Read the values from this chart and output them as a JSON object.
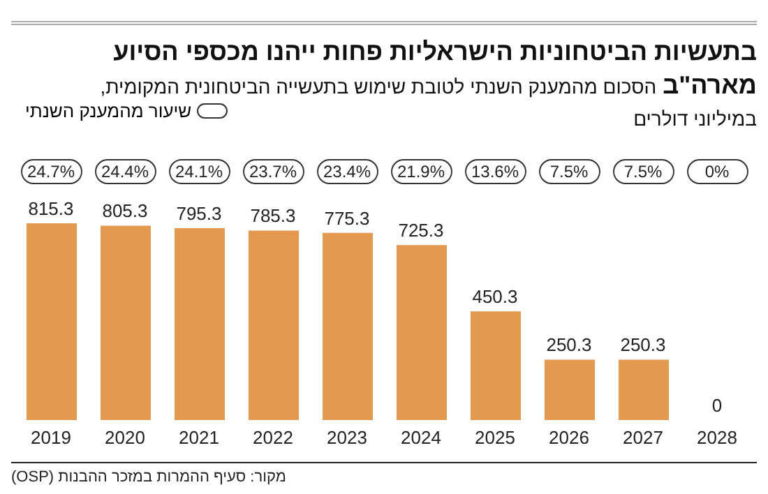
{
  "chart_data": {
    "type": "bar",
    "title": "בתעשיות הביטחוניות הישראליות פחות ייהנו מכספי הסיוע מארה\"ב",
    "subtitle": "הסכום מהמענק השנתי לטובת שימוש בתעשייה הביטחונית המקומית, במיליוני דולרים",
    "categories": [
      "2019",
      "2020",
      "2021",
      "2022",
      "2023",
      "2024",
      "2025",
      "2026",
      "2027",
      "2028"
    ],
    "values": [
      815.3,
      805.3,
      795.3,
      785.3,
      775.3,
      725.3,
      450.3,
      250.3,
      250.3,
      0
    ],
    "color": "#e39a4e",
    "data_labels": true,
    "tick_labels": "x",
    "annotations": [
      "24.7%",
      "24.4%",
      "24.1%",
      "23.7%",
      "23.4%",
      "21.9%",
      "13.6%",
      "7.5%",
      "7.5%",
      "0%",
      "שיעור מהמענק השנתי",
      "מקור: סעיף ההמרות במזכר ההבנות (OSP)"
    ]
  }
}
